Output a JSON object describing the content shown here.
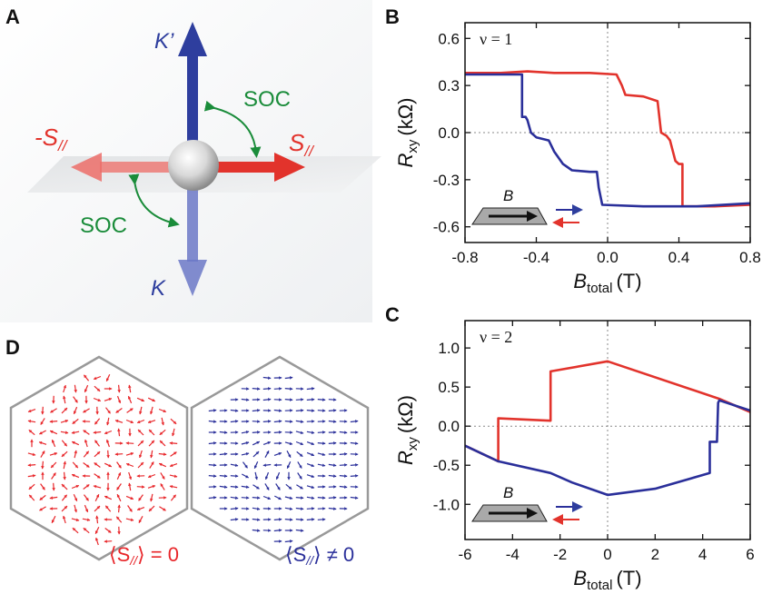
{
  "figure": {
    "panels": {
      "A": "A",
      "B": "B",
      "C": "C",
      "D": "D"
    },
    "panel_a": {
      "k_prime": "K’",
      "k": "K",
      "s_par": "S",
      "s_sub": "//",
      "neg_s_par": "-S",
      "neg_s_sub": "//",
      "soc_top": "SOC",
      "soc_bottom": "SOC",
      "colors": {
        "blue": "#2e3e9e",
        "red": "#e2332c",
        "green": "#1a8c3a"
      }
    },
    "panel_d": {
      "left_caption": "⟨S",
      "left_caption_sub": "//",
      "left_caption_rest": "⟩ = 0",
      "right_caption": "⟨S",
      "right_caption_sub": "//",
      "right_caption_rest": "⟩ ≠ 0",
      "left_color": "#e8262a",
      "right_color": "#2a2f9a"
    },
    "inset": {
      "field_label": "B"
    }
  },
  "chart_data": [
    {
      "id": "B",
      "type": "line",
      "annotation": "ν = 1",
      "ylabel_main": "R",
      "ylabel_sub": "xy",
      "ylabel_unit": "(kΩ)",
      "xlabel_main": "B",
      "xlabel_sub": "total",
      "xlabel_unit": "(T)",
      "xlim": [
        -0.8,
        0.8
      ],
      "ylim": [
        -0.7,
        0.7
      ],
      "xticks": [
        "-0.8",
        "-0.4",
        "0.0",
        "0.4",
        "0.8"
      ],
      "xtick_values": [
        -0.8,
        -0.4,
        0.0,
        0.4,
        0.8
      ],
      "yticks": [
        "0.6",
        "0.3",
        "0.0",
        "-0.3",
        "-0.6"
      ],
      "ytick_values": [
        0.6,
        0.3,
        0.0,
        -0.3,
        -0.6
      ],
      "series": [
        {
          "color": "#e2332c",
          "x": [
            -0.8,
            -0.6,
            -0.45,
            -0.3,
            -0.1,
            0.05,
            0.08,
            0.1,
            0.2,
            0.28,
            0.3,
            0.33,
            0.35,
            0.38,
            0.4,
            0.42,
            0.42,
            0.6,
            0.8
          ],
          "y": [
            0.38,
            0.38,
            0.39,
            0.38,
            0.38,
            0.37,
            0.3,
            0.24,
            0.23,
            0.2,
            0.0,
            -0.02,
            -0.05,
            -0.18,
            -0.2,
            -0.2,
            -0.47,
            -0.47,
            -0.46
          ]
        },
        {
          "color": "#2a2f9a",
          "x": [
            -0.8,
            -0.6,
            -0.48,
            -0.48,
            -0.46,
            -0.45,
            -0.43,
            -0.4,
            -0.33,
            -0.3,
            -0.25,
            -0.2,
            -0.1,
            -0.06,
            -0.05,
            -0.03,
            0.2,
            0.5,
            0.8
          ],
          "y": [
            0.37,
            0.37,
            0.37,
            0.1,
            0.1,
            0.08,
            0.0,
            -0.03,
            -0.05,
            -0.12,
            -0.2,
            -0.24,
            -0.25,
            -0.25,
            -0.35,
            -0.46,
            -0.47,
            -0.47,
            -0.45
          ]
        }
      ]
    },
    {
      "id": "C",
      "type": "line",
      "annotation": "ν = 2",
      "ylabel_main": "R",
      "ylabel_sub": "xy",
      "ylabel_unit": "(kΩ)",
      "xlabel_main": "B",
      "xlabel_sub": "total",
      "xlabel_unit": "(T)",
      "xlim": [
        -6,
        6
      ],
      "ylim": [
        -1.45,
        1.35
      ],
      "xticks": [
        "-6",
        "-4",
        "-2",
        "0",
        "2",
        "4",
        "6"
      ],
      "xtick_values": [
        -6,
        -4,
        -2,
        0,
        2,
        4,
        6
      ],
      "yticks": [
        "1.0",
        "0.5",
        "0.0",
        "-0.5",
        "-1.0"
      ],
      "ytick_values": [
        1.0,
        0.5,
        0.0,
        -0.5,
        -1.0
      ],
      "series": [
        {
          "color": "#e2332c",
          "x": [
            -6,
            -4.6,
            -4.6,
            -2.4,
            -2.4,
            0,
            4.7,
            6
          ],
          "y": [
            -0.25,
            -0.45,
            0.1,
            0.07,
            0.7,
            0.83,
            0.35,
            0.18
          ]
        },
        {
          "color": "#2a2f9a",
          "x": [
            -6,
            -4.6,
            -2.4,
            -1.5,
            0,
            2,
            4.3,
            4.3,
            4.6,
            4.65,
            4.7,
            6
          ],
          "y": [
            -0.25,
            -0.45,
            -0.6,
            -0.72,
            -0.88,
            -0.8,
            -0.6,
            -0.2,
            -0.2,
            0.3,
            0.33,
            0.2
          ]
        }
      ]
    }
  ]
}
